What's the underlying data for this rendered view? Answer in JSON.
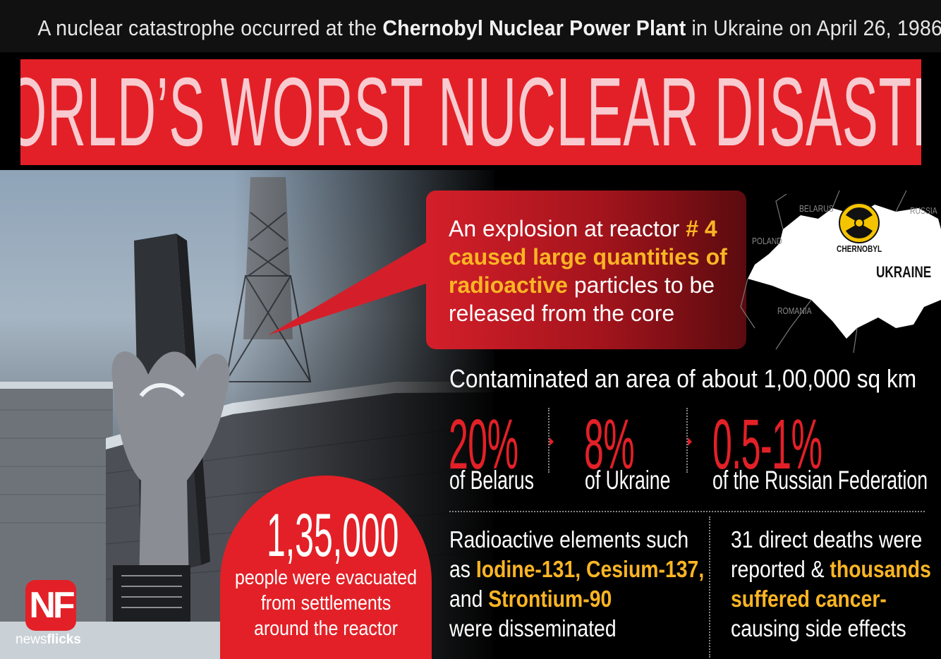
{
  "header": {
    "subtitle_pre": "A nuclear catastrophe occurred at the",
    "subtitle_bold": "Chernobyl Nuclear Power Plant",
    "subtitle_post": "in Ukraine on April 26, 1986",
    "title": "WORLD’S WORST NUCLEAR DISASTER"
  },
  "callout": {
    "text_pre": "An explosion at reactor",
    "highlight_1": "# 4 caused large quantities of radioactive",
    "text_post": "particles to be released from the core"
  },
  "map": {
    "labels": {
      "belarus": "BELARUS",
      "russia": "RUSSIA",
      "poland": "POLAND",
      "chernobyl": "CHERNOBYL",
      "ukraine": "UKRAINE",
      "romania": "ROMANIA"
    },
    "icon": "radiation-icon",
    "marker_color": "#f5c400"
  },
  "area": {
    "text": "Contaminated an area of about 1,00,000 sq km"
  },
  "stats": [
    {
      "value": "20%",
      "label": "of Belarus"
    },
    {
      "value": "8%",
      "label": "of Ukraine"
    },
    {
      "value": "0.5-1%",
      "label": "of the Russian Federation"
    }
  ],
  "elements": {
    "line1": "Radioactive elements such",
    "line2_pre": "as",
    "line2_hl": "Iodine-131, Cesium-137,",
    "line3_pre": "and",
    "line3_hl": "Strontium-90",
    "line4": "were disseminated"
  },
  "deaths": {
    "line1": "31 direct deaths were",
    "line2_pre": "reported &",
    "line2_hl": "thousands",
    "line3_hl": "suffered cancer-",
    "line4": "causing side effects"
  },
  "evacuation": {
    "number": "1,35,000",
    "text": "people were evacuated from settlements around the reactor"
  },
  "logo": {
    "mark": "NF",
    "name_light": "news",
    "name_bold": "flicks"
  },
  "colors": {
    "red": "#e32027",
    "highlight": "#fbb524",
    "title_text": "#f7cbd0"
  }
}
